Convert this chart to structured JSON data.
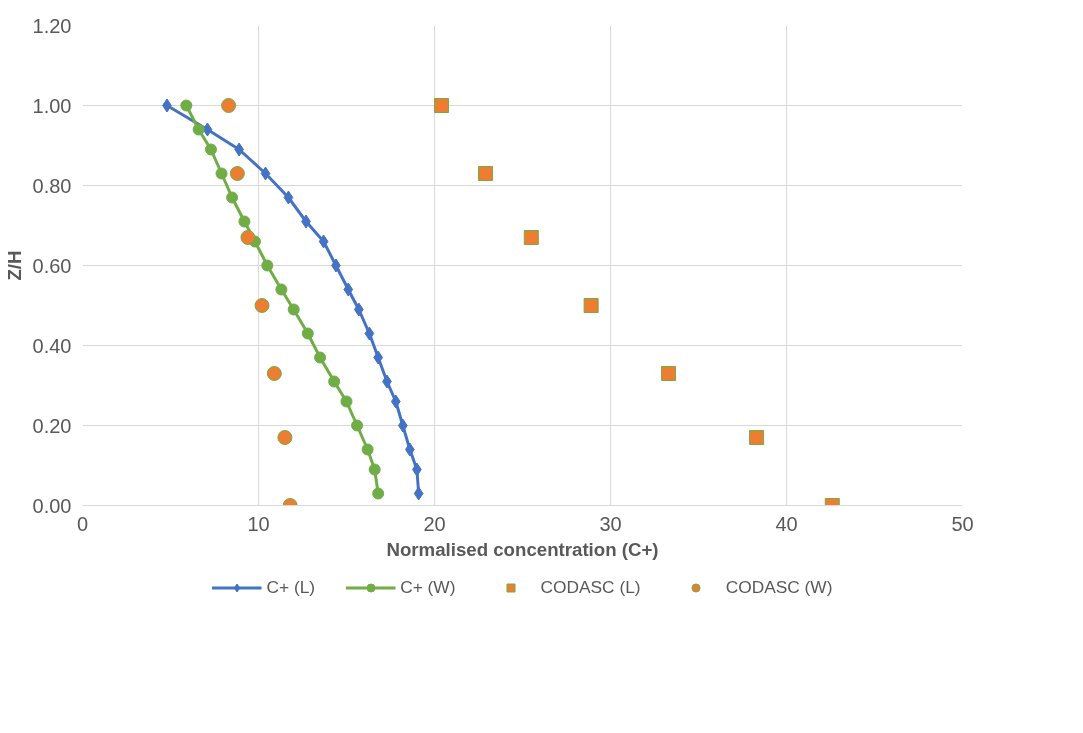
{
  "chart_data": {
    "type": "scatter",
    "xlabel": "Normalised concentration (C+)",
    "ylabel": "Z/H",
    "xlim": [
      0,
      50
    ],
    "ylim": [
      0,
      1.2
    ],
    "xticks": [
      0,
      10,
      20,
      30,
      40,
      50
    ],
    "yticks": [
      {
        "value": 0,
        "label": "0.00"
      },
      {
        "value": 0.2,
        "label": "0.20"
      },
      {
        "value": 0.4,
        "label": "0.40"
      },
      {
        "value": 0.6,
        "label": "0.60"
      },
      {
        "value": 0.8,
        "label": "0.80"
      },
      {
        "value": 1.0,
        "label": "1.00"
      },
      {
        "value": 1.2,
        "label": "1.20"
      }
    ],
    "grid": true,
    "legend": "bottom",
    "series": [
      {
        "name": "C+ (L)",
        "type": "line",
        "marker": "diamond",
        "color": "#4472c4",
        "x": [
          4.8,
          7.1,
          8.9,
          10.4,
          11.7,
          12.7,
          13.7,
          14.4,
          15.1,
          15.7,
          16.3,
          16.8,
          17.3,
          17.8,
          18.2,
          18.6,
          19.0,
          19.1
        ],
        "values": [
          1.0,
          0.94,
          0.89,
          0.83,
          0.77,
          0.71,
          0.66,
          0.6,
          0.54,
          0.49,
          0.43,
          0.37,
          0.31,
          0.26,
          0.2,
          0.14,
          0.09,
          0.03
        ]
      },
      {
        "name": "C+ (W)",
        "type": "line",
        "marker": "circle",
        "color": "#70ad47",
        "x": [
          5.9,
          6.6,
          7.3,
          7.9,
          8.5,
          9.2,
          9.8,
          10.5,
          11.3,
          12.0,
          12.8,
          13.5,
          14.3,
          15.0,
          15.6,
          16.2,
          16.6,
          16.8
        ],
        "values": [
          1.0,
          0.94,
          0.89,
          0.83,
          0.77,
          0.71,
          0.66,
          0.6,
          0.54,
          0.49,
          0.43,
          0.37,
          0.31,
          0.26,
          0.2,
          0.14,
          0.09,
          0.03
        ]
      },
      {
        "name": "CODASC (L)",
        "marker": "square",
        "color": "#ed7d31",
        "x": [
          20.4,
          22.9,
          25.5,
          28.9,
          33.3,
          38.3,
          42.6
        ],
        "values": [
          1.0,
          0.83,
          0.67,
          0.5,
          0.33,
          0.17,
          0.0
        ]
      },
      {
        "name": "CODASC (W)",
        "marker": "circle",
        "color": "#ed7d31",
        "x": [
          8.3,
          8.8,
          9.4,
          10.2,
          10.9,
          11.5,
          11.8
        ],
        "values": [
          1.0,
          0.83,
          0.67,
          0.5,
          0.33,
          0.17,
          0.0
        ]
      }
    ]
  }
}
